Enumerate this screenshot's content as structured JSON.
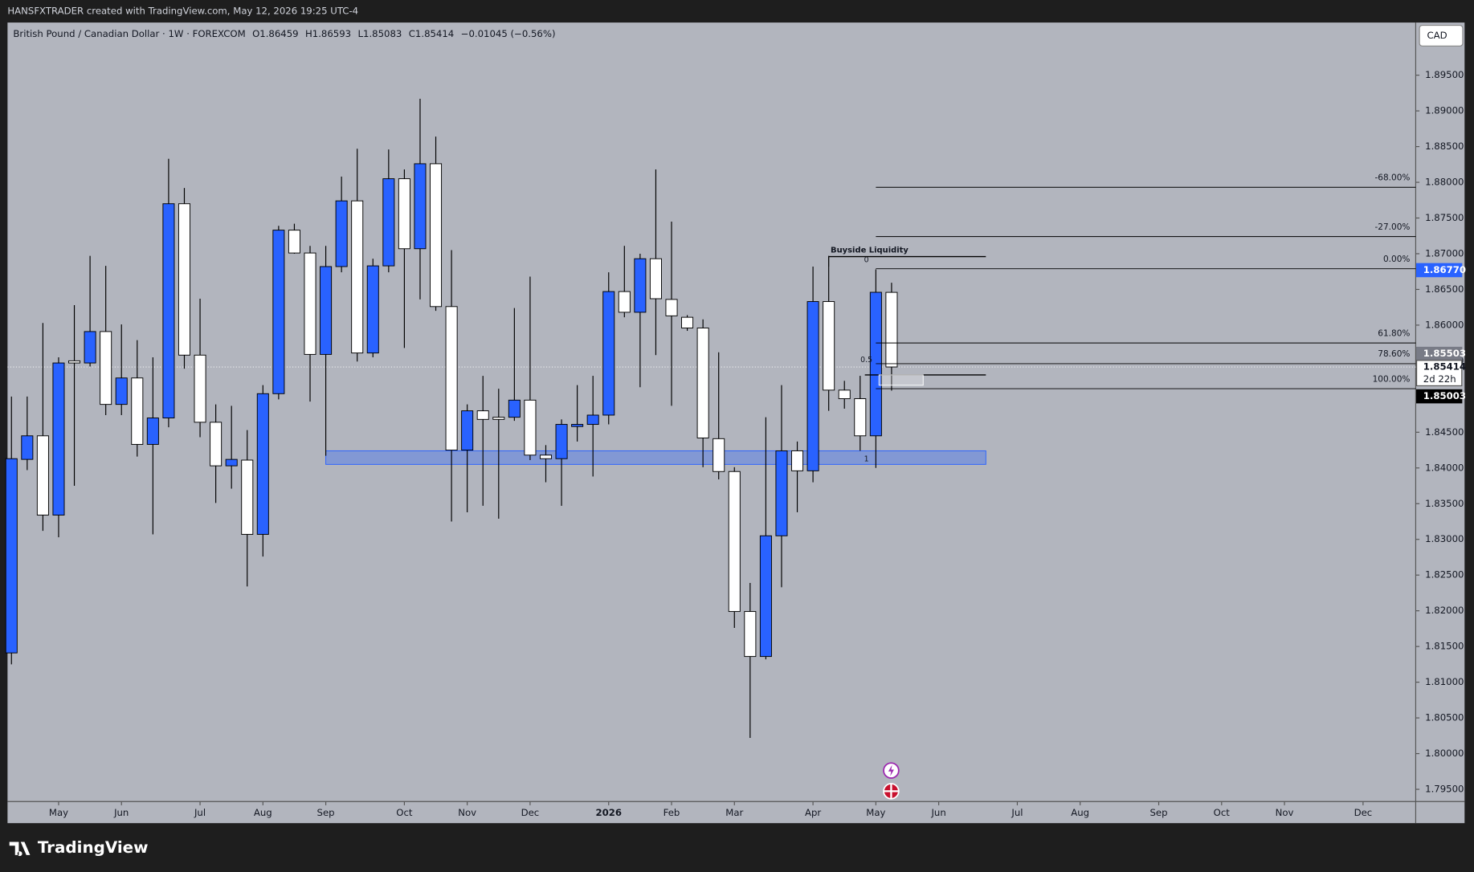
{
  "header": "HANSFXTRADER created with TradingView.com, May 12, 2026 19:25 UTC-4",
  "brand": "TradingView",
  "chart_data": {
    "type": "candlestick",
    "legend": {
      "symbol": "British Pound / Canadian Dollar · 1W · FOREXCOM",
      "o": "O1.86459",
      "h": "H1.86593",
      "l": "L1.85083",
      "c": "C1.85414",
      "change": "−0.01045 (−0.56%)"
    },
    "currency": "CAD",
    "up_color": "#2962ff",
    "down_color": "#ffffff",
    "open": [
      1.8141,
      1.8412,
      1.8445,
      1.8334,
      1.855,
      1.8547,
      1.8591,
      1.8489,
      1.8526,
      1.8433,
      1.847,
      1.877,
      1.8558,
      1.8464,
      1.8403,
      1.8411,
      1.8307,
      1.8504,
      1.8733,
      1.8701,
      1.8559,
      1.8682,
      1.8774,
      1.8561,
      1.8683,
      1.8805,
      1.8707,
      1.8826,
      1.8626,
      1.8425,
      1.848,
      1.8471,
      1.8471,
      1.8495,
      1.8418,
      1.8413,
      1.8458,
      1.8461,
      1.8474,
      1.8647,
      1.8618,
      1.8693,
      1.8636,
      1.8611,
      1.8596,
      1.8441,
      1.8395,
      1.8199,
      1.8136,
      1.8305,
      1.8424,
      1.8396,
      1.8633,
      1.8509,
      1.8497,
      1.8445,
      1.86459
    ],
    "high": [
      1.85,
      1.85,
      1.8603,
      1.8555,
      1.8628,
      1.8697,
      1.8683,
      1.8601,
      1.8579,
      1.8555,
      1.8833,
      1.8792,
      1.8637,
      1.8489,
      1.8487,
      1.8453,
      1.8516,
      1.8739,
      1.8742,
      1.8711,
      1.8711,
      1.8808,
      1.8847,
      1.8693,
      1.8846,
      1.8818,
      1.8917,
      1.8864,
      1.8705,
      1.8489,
      1.8529,
      1.8511,
      1.8624,
      1.8668,
      1.8432,
      1.8468,
      1.8516,
      1.8529,
      1.8674,
      1.8711,
      1.87,
      1.8818,
      1.8745,
      1.8614,
      1.8608,
      1.8562,
      1.8401,
      1.8239,
      1.8471,
      1.8516,
      1.8437,
      1.8682,
      1.8697,
      1.8522,
      1.8529,
      1.8678,
      1.86593
    ],
    "low": [
      1.8125,
      1.8397,
      1.8312,
      1.8303,
      1.8375,
      1.8542,
      1.8474,
      1.8474,
      1.8416,
      1.8307,
      1.8457,
      1.8539,
      1.8443,
      1.8351,
      1.8371,
      1.8234,
      1.8276,
      1.8496,
      1.87,
      1.8493,
      1.8417,
      1.8674,
      1.8549,
      1.8555,
      1.8674,
      1.8568,
      1.8636,
      1.862,
      1.8325,
      1.8338,
      1.8347,
      1.8329,
      1.8466,
      1.8411,
      1.838,
      1.8347,
      1.8437,
      1.8388,
      1.8461,
      1.8611,
      1.8513,
      1.8558,
      1.8487,
      1.8592,
      1.8401,
      1.8384,
      1.8176,
      1.8022,
      1.8132,
      1.8233,
      1.8338,
      1.838,
      1.848,
      1.8483,
      1.8424,
      1.84,
      1.85083
    ],
    "close": [
      1.8413,
      1.8445,
      1.8334,
      1.8547,
      1.8547,
      1.8591,
      1.8489,
      1.8526,
      1.8433,
      1.847,
      1.877,
      1.8558,
      1.8464,
      1.8403,
      1.8412,
      1.8307,
      1.8504,
      1.8733,
      1.8701,
      1.8559,
      1.8682,
      1.8774,
      1.8561,
      1.8683,
      1.8805,
      1.8707,
      1.8826,
      1.8626,
      1.8425,
      1.848,
      1.8468,
      1.8468,
      1.8495,
      1.8418,
      1.8413,
      1.8461,
      1.8461,
      1.8474,
      1.8647,
      1.8618,
      1.8693,
      1.8637,
      1.8613,
      1.8596,
      1.8442,
      1.8395,
      1.8199,
      1.8136,
      1.8305,
      1.8424,
      1.8396,
      1.8633,
      1.8509,
      1.8497,
      1.8445,
      1.8646,
      1.85414
    ],
    "xlim": [
      -0.25,
      89.35
    ],
    "xticks": [
      {
        "value": 3,
        "label": "May"
      },
      {
        "value": 7,
        "label": "Jun"
      },
      {
        "value": 12,
        "label": "Jul"
      },
      {
        "value": 16,
        "label": "Aug"
      },
      {
        "value": 20,
        "label": "Sep"
      },
      {
        "value": 25,
        "label": "Oct"
      },
      {
        "value": 29,
        "label": "Nov"
      },
      {
        "value": 33,
        "label": "Dec"
      },
      {
        "value": 38,
        "label": "2026"
      },
      {
        "value": 42,
        "label": "Feb"
      },
      {
        "value": 46,
        "label": "Mar"
      },
      {
        "value": 51,
        "label": "Apr"
      },
      {
        "value": 55,
        "label": "May"
      },
      {
        "value": 59,
        "label": "Jun"
      },
      {
        "value": 64,
        "label": "Jul"
      },
      {
        "value": 68,
        "label": "Aug"
      },
      {
        "value": 73,
        "label": "Sep"
      },
      {
        "value": 77,
        "label": "Oct"
      },
      {
        "value": 81,
        "label": "Nov"
      },
      {
        "value": 86,
        "label": "Dec"
      }
    ],
    "ylim": [
      1.79329,
      1.90237
    ],
    "yticks": [
      {
        "value": 1.795,
        "label": "1.79500"
      },
      {
        "value": 1.8,
        "label": "1.80000"
      },
      {
        "value": 1.805,
        "label": "1.80500"
      },
      {
        "value": 1.81,
        "label": "1.81000"
      },
      {
        "value": 1.815,
        "label": "1.81500"
      },
      {
        "value": 1.82,
        "label": "1.82000"
      },
      {
        "value": 1.825,
        "label": "1.82500"
      },
      {
        "value": 1.83,
        "label": "1.83000"
      },
      {
        "value": 1.835,
        "label": "1.83500"
      },
      {
        "value": 1.84,
        "label": "1.84000"
      },
      {
        "value": 1.845,
        "label": "1.84500"
      },
      {
        "value": 1.85,
        "label": "1.85000"
      },
      {
        "value": 1.855,
        "label": "1.85500"
      },
      {
        "value": 1.86,
        "label": "1.86000"
      },
      {
        "value": 1.865,
        "label": "1.86500"
      },
      {
        "value": 1.87,
        "label": "1.87000"
      },
      {
        "value": 1.875,
        "label": "1.87500"
      },
      {
        "value": 1.88,
        "label": "1.88000"
      },
      {
        "value": 1.885,
        "label": "1.88500"
      },
      {
        "value": 1.89,
        "label": "1.89000"
      },
      {
        "value": 1.895,
        "label": "1.89500"
      }
    ],
    "fib_levels": [
      {
        "value": 1.8793,
        "label": "-68.00%"
      },
      {
        "value": 1.8724,
        "label": "-27.00%"
      },
      {
        "value": 1.8679,
        "label": "0.00%"
      },
      {
        "value": 1.8575,
        "label": "61.80%"
      },
      {
        "value": 1.8546,
        "label": "78.60%"
      },
      {
        "value": 1.8511,
        "label": "100.00%"
      }
    ],
    "fib_anchor_labels": [
      {
        "value": 1.8691,
        "label": "0"
      },
      {
        "value": 1.8551,
        "label": "0.5"
      },
      {
        "value": 1.8412,
        "label": "1"
      }
    ],
    "buyside": {
      "value": 1.8696,
      "label": "Buyside Liquidity"
    },
    "zone": {
      "top": 1.8424,
      "bottom": 1.8405
    },
    "price_tags": [
      {
        "value": 1.8677,
        "label": "1.86770",
        "bg": "#2962ff",
        "fg": "#ffffff"
      },
      {
        "value": 1.85503,
        "label": "1.85503",
        "bg": "#787b86",
        "fg": "#ffffff"
      },
      {
        "value": 1.85414,
        "label": "1.85414",
        "sublabel": "2d 22h",
        "bg": "#ffffff",
        "fg": "#131722"
      },
      {
        "value": 1.85003,
        "label": "1.85003",
        "bg": "#000000",
        "fg": "#ffffff"
      }
    ]
  }
}
